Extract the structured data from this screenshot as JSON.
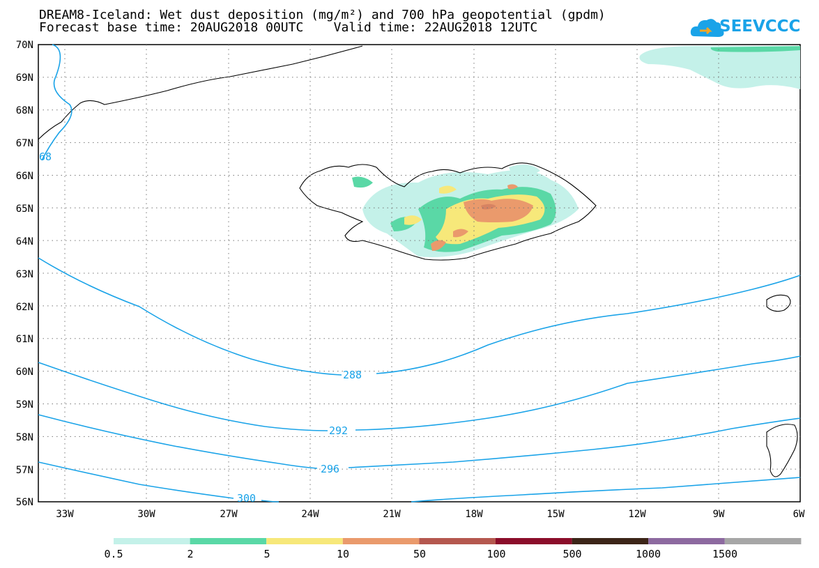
{
  "title": {
    "line1": "DREAM8-Iceland: Wet dust deposition (mg/m²) and 700 hPa geopotential (gpdm)",
    "line2": "Forecast base time: 20AUG2018 00UTC    Valid time: 22AUG2018 12UTC"
  },
  "logo": {
    "text": "SEEVCCC",
    "icon": "cloud-icon"
  },
  "axes": {
    "lat_labels": [
      "70N",
      "69N",
      "68N",
      "67N",
      "66N",
      "65N",
      "64N",
      "63N",
      "62N",
      "61N",
      "60N",
      "59N",
      "58N",
      "57N",
      "56N"
    ],
    "lon_labels": [
      "33W",
      "30W",
      "27W",
      "24W",
      "21W",
      "18W",
      "15W",
      "12W",
      "9W",
      "6W"
    ],
    "grid": "dotted"
  },
  "contours": {
    "color": "#1aa3e8",
    "labels": [
      "288",
      "292",
      "296",
      "300",
      "68"
    ]
  },
  "legend": {
    "colors": [
      "#c4f1e9",
      "#5ad8a6",
      "#f7e87a",
      "#ea9a6c",
      "#b5584f",
      "#8b0d2a",
      "#3c2518",
      "#8d6aa0",
      "#a6a6a6"
    ],
    "labels": [
      "0.5",
      "2",
      "5",
      "10",
      "50",
      "100",
      "500",
      "1000",
      "1500"
    ]
  }
}
